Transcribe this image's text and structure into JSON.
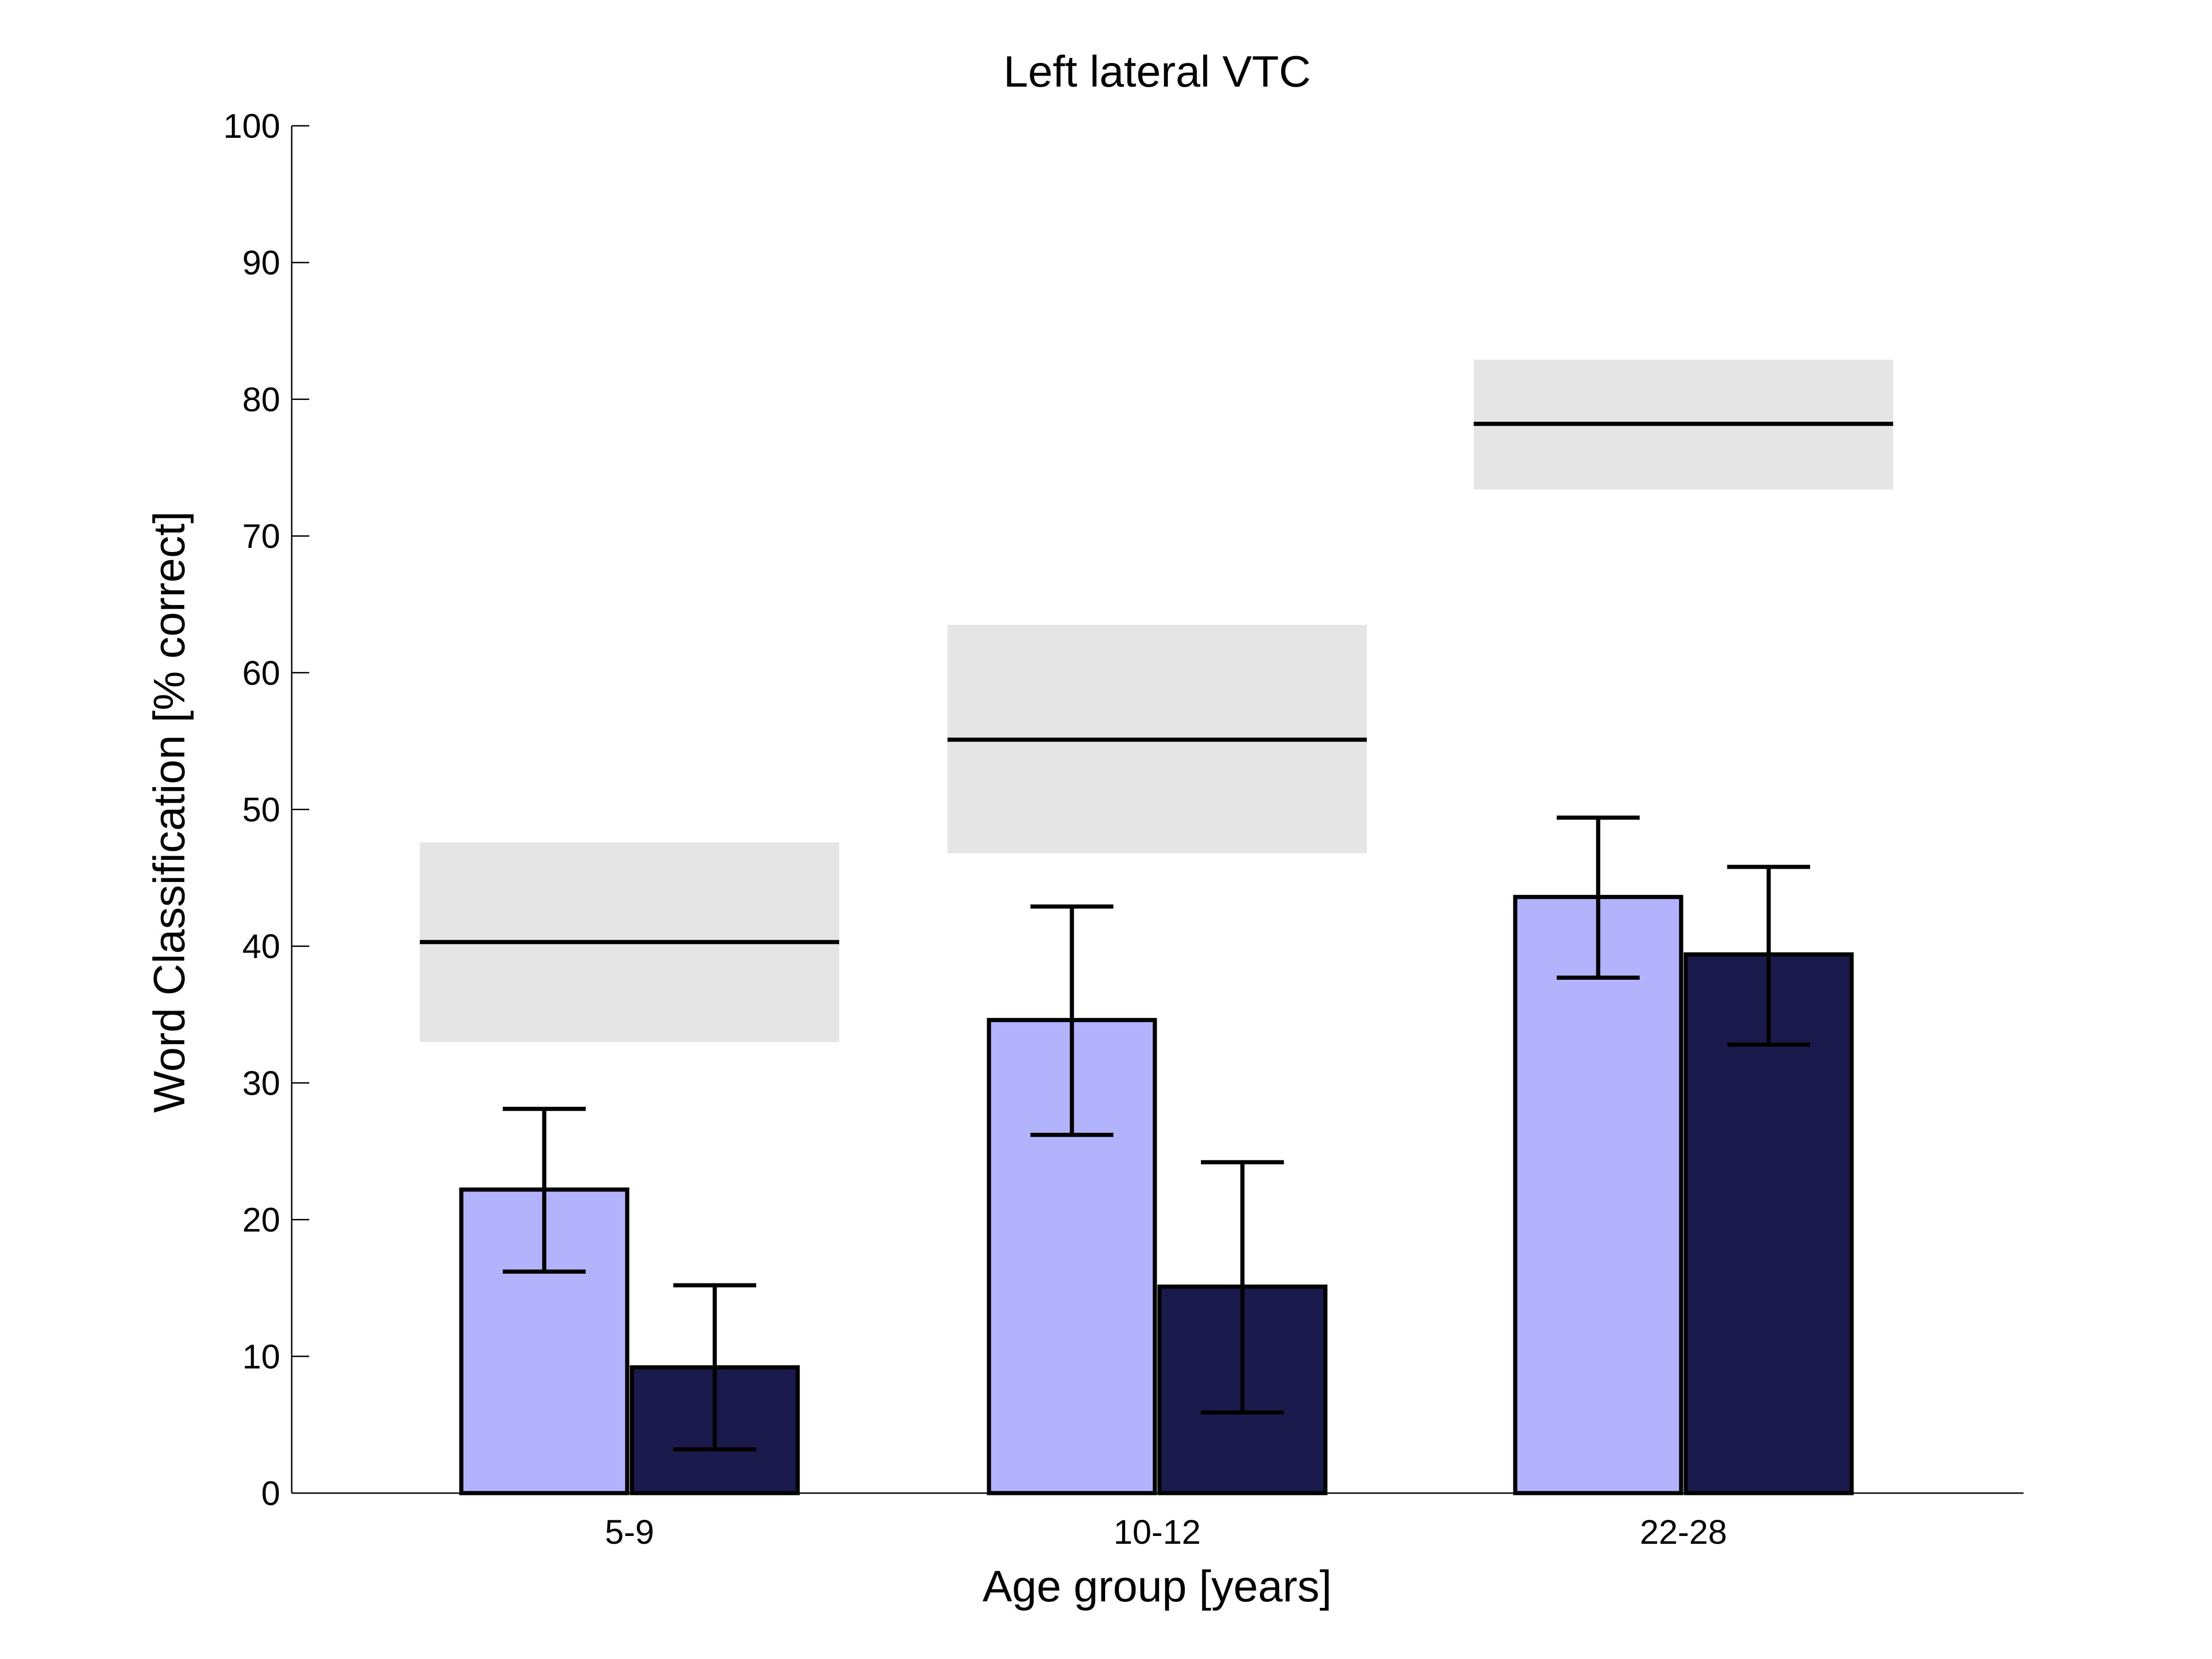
{
  "chart_data": {
    "type": "bar",
    "title": "Left lateral VTC",
    "xlabel": "Age group [years]",
    "ylabel": "Word Classification [% correct]",
    "ylim": [
      0,
      100
    ],
    "yticks": [
      0,
      10,
      20,
      30,
      40,
      50,
      60,
      70,
      80,
      90,
      100
    ],
    "grid": false,
    "categories": [
      "5-9",
      "10-12",
      "22-28"
    ],
    "series": [
      {
        "color": "#b3b3fd",
        "values": [
          22.2,
          34.6,
          43.6
        ],
        "error_low": [
          16.2,
          26.2,
          37.7
        ],
        "error_high": [
          28.1,
          42.9,
          49.4
        ]
      },
      {
        "color": "#1a1a4d",
        "values": [
          9.2,
          15.1,
          39.4
        ],
        "error_low": [
          3.2,
          5.9,
          32.8
        ],
        "error_high": [
          15.2,
          24.2,
          45.8
        ]
      }
    ],
    "reference_bands": [
      {
        "mean": 40.3,
        "low": 33.0,
        "high": 47.6
      },
      {
        "mean": 55.1,
        "low": 46.8,
        "high": 63.5
      },
      {
        "mean": 78.2,
        "low": 73.4,
        "high": 82.9
      }
    ],
    "band_color": "#e5e5e5"
  }
}
